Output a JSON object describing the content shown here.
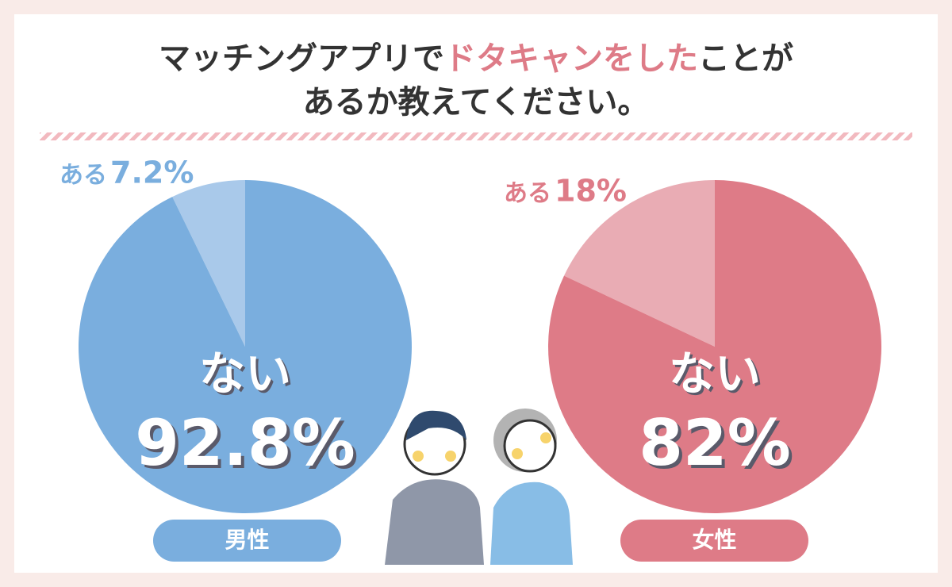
{
  "title": [
    "マッチングアプリで",
    "ドタキャンをした",
    "ことが",
    "あるか教えてください。"
  ],
  "chart_data": [
    {
      "type": "pie",
      "label": "男性",
      "categories": [
        "ある",
        "ない"
      ],
      "values": [
        7.2,
        92.8
      ],
      "value_labels": [
        "7.2%",
        "92.8%"
      ],
      "colors": [
        "#a9c9ea",
        "#7aaede"
      ]
    },
    {
      "type": "pie",
      "label": "女性",
      "categories": [
        "ある",
        "ない"
      ],
      "values": [
        18,
        82
      ],
      "value_labels": [
        "18%",
        "82%"
      ],
      "colors": [
        "#e9acb4",
        "#de7b87"
      ]
    }
  ]
}
